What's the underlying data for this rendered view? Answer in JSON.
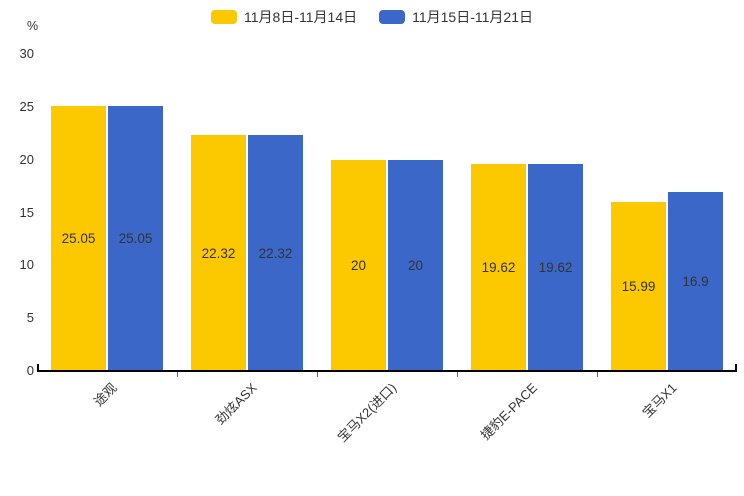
{
  "chart_data": {
    "type": "bar",
    "title": "",
    "ylabel_unit": "%",
    "categories": [
      "途观",
      "劲炫ASX",
      "宝马X2(进口)",
      "捷豹E-PACE",
      "宝马X1"
    ],
    "series": [
      {
        "name": "11月8日-11月14日",
        "color": "#FCC800",
        "values": [
          25.05,
          22.32,
          20,
          19.62,
          15.99
        ]
      },
      {
        "name": "11月15日-11月21日",
        "color": "#3A67C8",
        "values": [
          25.05,
          22.32,
          20,
          19.62,
          16.9
        ]
      }
    ],
    "ylim": [
      0,
      30
    ],
    "yticks": [
      0,
      5,
      10,
      15,
      20,
      25,
      30
    ],
    "grid": false,
    "legend_position": "top-center",
    "value_labels": "inside-middle",
    "value_label_color": "#333333",
    "axis_color": "#000000"
  }
}
